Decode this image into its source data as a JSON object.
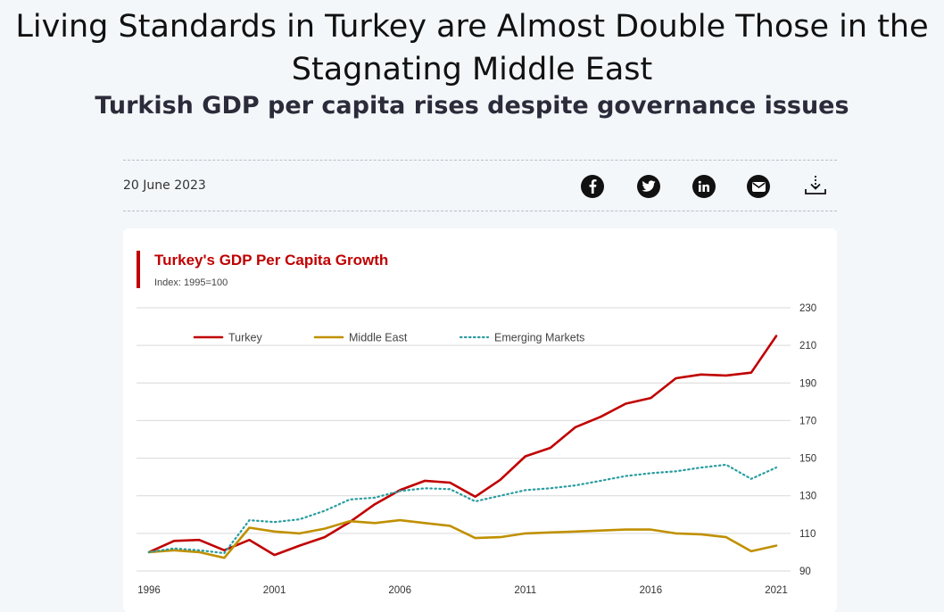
{
  "article": {
    "headline": "Living Standards in Turkey are Almost Double Those in the Stagnating Middle East",
    "subheadline": "Turkish GDP per capita rises despite governance issues",
    "date": "20 June 2023"
  },
  "share_icons": [
    "facebook-icon",
    "twitter-icon",
    "linkedin-icon",
    "email-icon",
    "download-icon"
  ],
  "colors": {
    "accent": "#c00000",
    "turkey": "#c00000",
    "middle_east": "#c09000",
    "emerging_markets": "#2a9d9f",
    "background": "#f4f7fa",
    "card": "#ffffff"
  },
  "chart_data": {
    "type": "line",
    "title": "Turkey's GDP Per Capita Growth",
    "subtitle": "Index: 1995=100",
    "x": [
      1996,
      1997,
      1998,
      1999,
      2000,
      2001,
      2002,
      2003,
      2004,
      2005,
      2006,
      2007,
      2008,
      2009,
      2010,
      2011,
      2012,
      2013,
      2014,
      2015,
      2016,
      2017,
      2018,
      2019,
      2020,
      2021
    ],
    "x_tick_labels": [
      "1996",
      "2001",
      "2006",
      "2011",
      "2016",
      "2021"
    ],
    "x_tick_values": [
      1996,
      2001,
      2006,
      2011,
      2016,
      2021
    ],
    "y_tick_labels": [
      "90",
      "110",
      "130",
      "150",
      "170",
      "190",
      "210",
      "230"
    ],
    "y_tick_values": [
      90,
      110,
      130,
      150,
      170,
      190,
      210,
      230
    ],
    "ylim": [
      90,
      230
    ],
    "xlim": [
      1996,
      2021
    ],
    "y_axis_position": "right",
    "grid": "horizontal",
    "legend_position": "top-left",
    "series": [
      {
        "name": "Turkey",
        "style": "solid",
        "color": "#c00000",
        "values": [
          100,
          106,
          106.5,
          101,
          106.5,
          98.5,
          103.5,
          108,
          116,
          125.5,
          133,
          138,
          137,
          129.5,
          138.5,
          151,
          155.5,
          166.5,
          172,
          179,
          182,
          192.5,
          194.5,
          194,
          195.5,
          215
        ]
      },
      {
        "name": "Middle East",
        "style": "solid",
        "color": "#c09000",
        "values": [
          100,
          101,
          100,
          97,
          113,
          111,
          110,
          112.5,
          116.5,
          115.5,
          117,
          115.5,
          114,
          107.5,
          108,
          110,
          110.5,
          111,
          111.5,
          112,
          112,
          110,
          109.5,
          108,
          100.5,
          103.5
        ]
      },
      {
        "name": "Emerging Markets",
        "style": "dotted",
        "color": "#2a9d9f",
        "values": [
          100,
          102,
          101,
          99.5,
          117,
          116,
          117.5,
          122,
          128,
          129,
          132.5,
          134,
          133.5,
          127,
          130,
          133,
          134,
          135.5,
          138,
          140.5,
          142,
          143,
          145,
          146.5,
          139,
          145
        ]
      }
    ]
  }
}
